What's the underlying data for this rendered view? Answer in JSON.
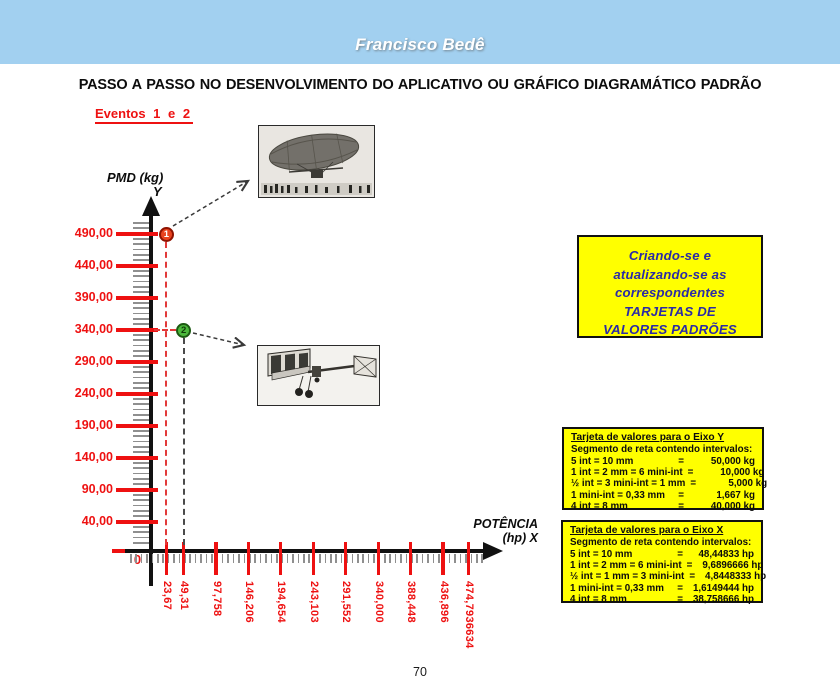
{
  "header": {
    "author": "Francisco Bedê",
    "title": "PASSO A PASSO NO DESENVOLVIMENTO DO APLICATIVO OU GRÁFICO DIAGRAMÁTICO PADRÃO"
  },
  "events_label": "Eventos 1 e 2",
  "page_number": "70",
  "colors": {
    "header_bar": "#A2D0F0",
    "accent_red": "#EE1111",
    "box_yellow": "#FFFF00",
    "note_text_blue": "#2B2BA6",
    "axis_black": "#111111",
    "minor_tick_gray": "#8F8F8F",
    "point1_fill": "#E8431F",
    "point2_fill": "#4CB83C"
  },
  "note_box": {
    "lines": [
      "Criando-se e",
      "atualizando-se  as",
      "correspondentes",
      "TARJETAS DE",
      "VALORES  PADRÕES"
    ]
  },
  "tarjeta_y": {
    "title": "Tarjeta de valores para o Eixo Y",
    "subtitle": "Segmento de reta contendo intervalos:",
    "equals_sign": "=",
    "rows": [
      {
        "label": "5 int = 10 mm",
        "value": "50,000 kg"
      },
      {
        "label": "1 int = 2 mm = 6 mini-int",
        "value": "10,000 kg"
      },
      {
        "label": "½ int = 3 mini-int = 1 mm",
        "value": "5,000 kg"
      },
      {
        "label": "1 mini-int = 0,33 mm",
        "value": "1,667 kg"
      },
      {
        "label": "4 int = 8 mm",
        "value": "40,000 kg"
      }
    ]
  },
  "tarjeta_x": {
    "title": "Tarjeta de valores para o Eixo X",
    "subtitle": "Segmento de reta contendo intervalos:",
    "equals_sign": "=",
    "rows": [
      {
        "label": "5 int = 10 mm",
        "value": "48,44833 hp"
      },
      {
        "label": "1 int = 2 mm = 6 mini-int",
        "value": "9,6896666 hp"
      },
      {
        "label": "½ int = 1 mm = 3 mini-int",
        "value": "4,8448333 hp"
      },
      {
        "label": "1 mini-int = 0,33 mm",
        "value": "1,6149444 hp"
      },
      {
        "label": "4 int = 8 mm",
        "value": "38,758666 hp"
      }
    ]
  },
  "chart_data": {
    "type": "scatter",
    "title": "",
    "xlabel": "POTÊNCIA (hp) X",
    "ylabel": "PMD (kg) Y",
    "x_title_line1": "POTÊNCIA",
    "x_title_line2": "(hp) X",
    "y_title_line1": "PMD  (kg)",
    "y_title_line2": "Y",
    "origin_label": "0",
    "x_unit": "hp",
    "y_unit": "kg",
    "xlim": [
      0,
      510
    ],
    "ylim": [
      0,
      540
    ],
    "grid": false,
    "x_tick_values": [
      23.67,
      49.31,
      97.758,
      146.206,
      194.654,
      243.103,
      291.552,
      340.0,
      388.448,
      436.896,
      474.7936634
    ],
    "x_tick_labels": [
      "23,67",
      "49,31",
      "97,758",
      "146,206",
      "194,654",
      "243,103",
      "291,552",
      "340,000",
      "388,448",
      "436,896",
      "474,7936634"
    ],
    "y_tick_values": [
      490,
      440,
      390,
      340,
      290,
      240,
      190,
      140,
      90,
      40
    ],
    "y_tick_labels": [
      "490,00",
      "440,00",
      "390,00",
      "340,00",
      "290,00",
      "240,00",
      "190,00",
      "140,00",
      "90,00",
      "40,00"
    ],
    "points": [
      {
        "id": "1",
        "x": 23.67,
        "y": 490
      },
      {
        "id": "2",
        "x": 49.31,
        "y": 340
      }
    ]
  }
}
